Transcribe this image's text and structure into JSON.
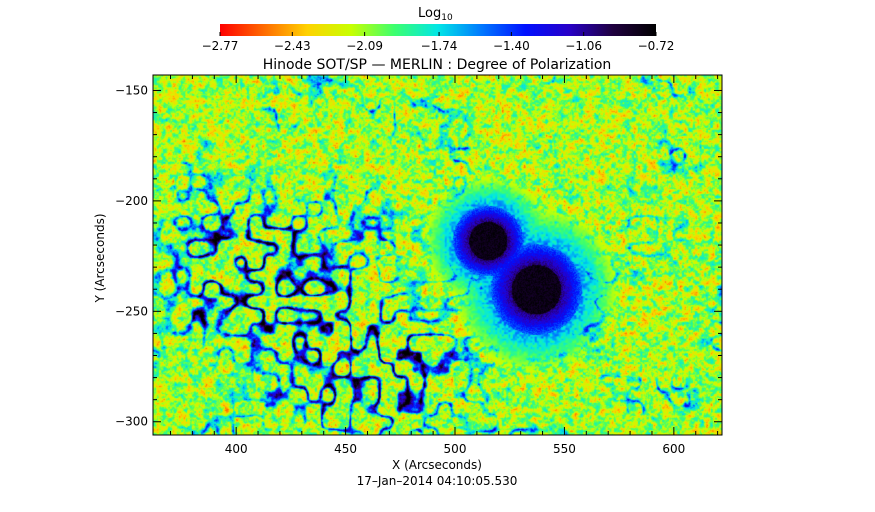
{
  "chart_data": {
    "type": "heatmap",
    "title": "Hinode SOT/SP — MERLIN : Degree of Polarization",
    "xlabel": "X (Arcseconds)",
    "ylabel": "Y (Arcseconds)",
    "timestamp": "17–Jan–2014 04:10:05.530",
    "xlim": [
      362,
      622
    ],
    "ylim": [
      -306,
      -143
    ],
    "x_ticks": [
      400,
      450,
      500,
      550,
      600
    ],
    "y_ticks": [
      -150,
      -200,
      -250,
      -300
    ],
    "x_tick_labels": [
      "400",
      "450",
      "500",
      "550",
      "600"
    ],
    "y_tick_labels": [
      "−150",
      "−200",
      "−250",
      "−300"
    ],
    "colorbar": {
      "label_base": "Log",
      "label_sub": "10",
      "min": -2.77,
      "max": -0.72,
      "ticks": [
        -2.77,
        -2.43,
        -2.09,
        -1.74,
        -1.4,
        -1.06,
        -0.72
      ],
      "tick_labels": [
        "−2.77",
        "−2.43",
        "−2.09",
        "−1.74",
        "−1.40",
        "−1.06",
        "−0.72"
      ],
      "colors": [
        "#ff0000",
        "#ff6a00",
        "#ffd200",
        "#c8ff00",
        "#3cff6e",
        "#00e6e6",
        "#0078ff",
        "#0010ff",
        "#2800c8",
        "#200040",
        "#000000"
      ]
    },
    "features": [
      {
        "type": "sunspot",
        "x": 515,
        "y": -218,
        "radius": 7
      },
      {
        "type": "sunspot",
        "x": 537,
        "y": -240,
        "radius": 9
      },
      {
        "type": "network",
        "x": 400,
        "y": -228
      },
      {
        "type": "network",
        "x": 435,
        "y": -250
      },
      {
        "type": "network",
        "x": 470,
        "y": -280
      }
    ]
  }
}
